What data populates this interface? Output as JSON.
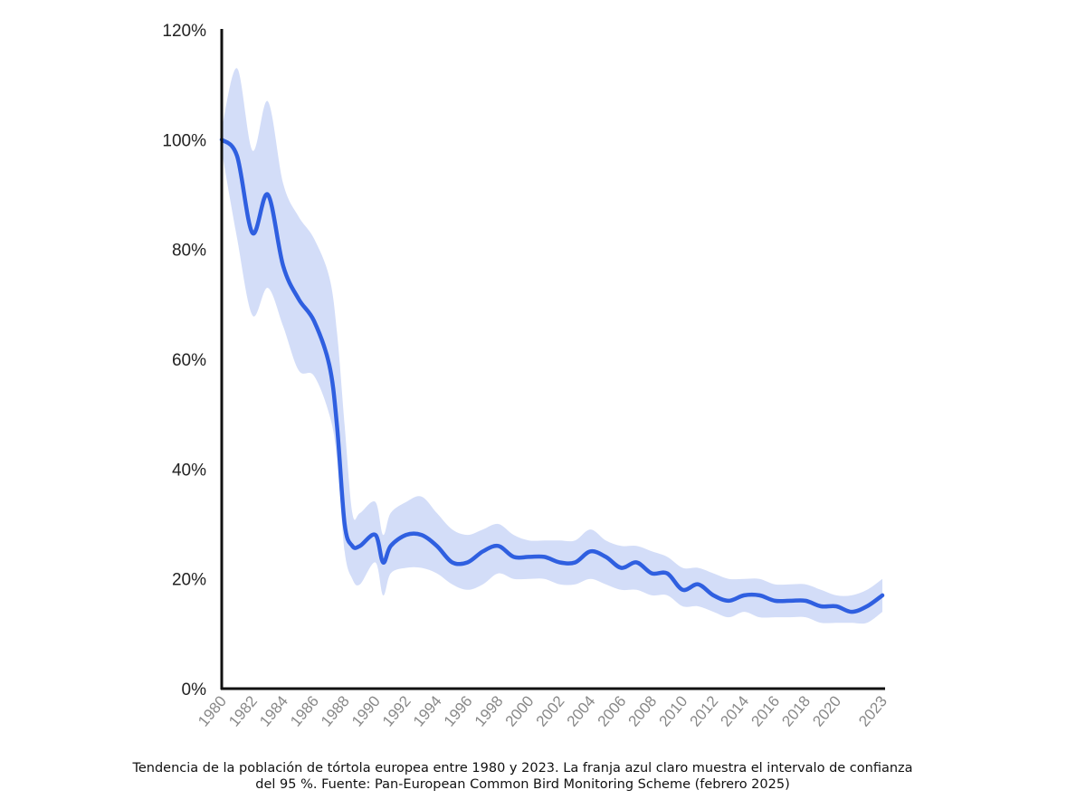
{
  "chart_data": {
    "type": "line",
    "title": "",
    "xlabel": "",
    "ylabel": "",
    "xlim": [
      1980,
      2023
    ],
    "ylim": [
      0,
      120
    ],
    "y_ticks": [
      "0%",
      "20%",
      "40%",
      "60%",
      "80%",
      "100%",
      "120%"
    ],
    "x_ticks": [
      "1980",
      "1982",
      "1984",
      "1986",
      "1988",
      "1990",
      "1992",
      "1994",
      "1996",
      "1998",
      "2000",
      "2002",
      "2004",
      "2006",
      "2008",
      "2010",
      "2012",
      "2014",
      "2016",
      "2018",
      "2020",
      "2023"
    ],
    "series": [
      {
        "name": "Tendencia",
        "color": "#2f5fe0",
        "x": [
          1980,
          1981,
          1982,
          1983,
          1984,
          1985,
          1986,
          1987,
          1987.5,
          1988,
          1988.5,
          1989,
          1990,
          1990.5,
          1991,
          1992,
          1993,
          1994,
          1995,
          1996,
          1997,
          1998,
          1999,
          2000,
          2001,
          2002,
          2003,
          2004,
          2005,
          2006,
          2007,
          2008,
          2009,
          2010,
          2011,
          2012,
          2013,
          2014,
          2015,
          2016,
          2017,
          2018,
          2019,
          2020,
          2021,
          2022,
          2023
        ],
        "values": [
          100,
          97,
          83,
          90,
          77,
          71,
          67,
          59,
          48,
          30,
          26,
          26,
          28,
          23,
          26,
          28,
          28,
          26,
          23,
          23,
          25,
          26,
          24,
          24,
          24,
          23,
          23,
          25,
          24,
          22,
          23,
          21,
          21,
          18,
          19,
          17,
          16,
          17,
          17,
          16,
          16,
          16,
          15,
          15,
          14,
          15,
          17
        ]
      },
      {
        "name": "Intervalo de confianza del 95 %",
        "color": "#d3ddf8",
        "x": [
          1980,
          1981,
          1982,
          1983,
          1984,
          1985,
          1986,
          1987,
          1987.5,
          1988,
          1988.5,
          1989,
          1990,
          1990.5,
          1991,
          1992,
          1993,
          1994,
          1995,
          1996,
          1997,
          1998,
          1999,
          2000,
          2001,
          2002,
          2003,
          2004,
          2005,
          2006,
          2007,
          2008,
          2009,
          2010,
          2011,
          2012,
          2013,
          2014,
          2015,
          2016,
          2017,
          2018,
          2019,
          2020,
          2021,
          2022,
          2023
        ],
        "upper": [
          102,
          113,
          98,
          107,
          92,
          86,
          82,
          75,
          65,
          48,
          32,
          32,
          34,
          28,
          32,
          34,
          35,
          32,
          29,
          28,
          29,
          30,
          28,
          27,
          27,
          27,
          27,
          29,
          27,
          26,
          26,
          25,
          24,
          22,
          22,
          21,
          20,
          20,
          20,
          19,
          19,
          19,
          18,
          17,
          17,
          18,
          20
        ],
        "lower": [
          98,
          82,
          68,
          73,
          66,
          58,
          57,
          50,
          42,
          25,
          20,
          19,
          23,
          17,
          21,
          22,
          22,
          21,
          19,
          18,
          19,
          21,
          20,
          20,
          20,
          19,
          19,
          20,
          19,
          18,
          18,
          17,
          17,
          15,
          15,
          14,
          13,
          14,
          13,
          13,
          13,
          13,
          12,
          12,
          12,
          12,
          14
        ]
      }
    ]
  },
  "caption": {
    "line1": "Tendencia de la población de tórtola europea entre 1980 y 2023. La franja azul claro muestra el intervalo de confianza",
    "line2": "del 95 %. Fuente: Pan-European Common Bird Monitoring Scheme (febrero 2025)"
  }
}
